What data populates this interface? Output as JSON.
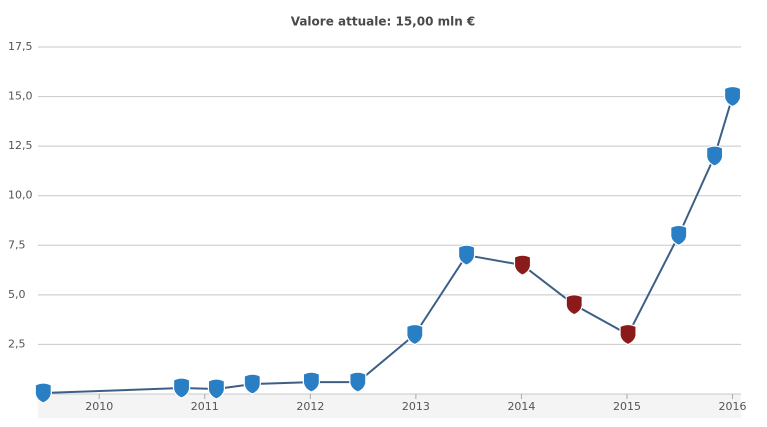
{
  "chart_data": {
    "type": "line",
    "title": "Valore attuale: 15,00 mln €",
    "x": [
      2009.47,
      2010.78,
      2011.11,
      2011.45,
      2012.01,
      2012.45,
      2012.99,
      2013.48,
      2014.01,
      2014.5,
      2015.01,
      2015.49,
      2015.83,
      2016.0
    ],
    "series": [
      {
        "color": "#3d5f86",
        "values": [
          0.05,
          0.3,
          0.25,
          0.5,
          0.6,
          0.6,
          3.0,
          7.0,
          6.5,
          4.5,
          3.0,
          8.0,
          12.0,
          15.0
        ],
        "point_colors": [
          "#2a7fc4",
          "#2a7fc4",
          "#2a7fc4",
          "#2a7fc4",
          "#2a7fc4",
          "#2a7fc4",
          "#2a7fc4",
          "#2a7fc4",
          "#8b1a1a",
          "#8b1a1a",
          "#8b1a1a",
          "#2a7fc4",
          "#2a7fc4",
          "#2a7fc4"
        ]
      }
    ],
    "xlim": [
      2009.42,
      2016.08
    ],
    "xticks": [
      2010,
      2011,
      2012,
      2013,
      2014,
      2015,
      2016
    ],
    "ylim": [
      0,
      17.5
    ],
    "yticks": [
      {
        "value": 2.5,
        "label": "2,5"
      },
      {
        "value": 5,
        "label": "5,0"
      },
      {
        "value": 7.5,
        "label": "7,5"
      },
      {
        "value": 10,
        "label": "10,0"
      },
      {
        "value": 12.5,
        "label": "12,5"
      },
      {
        "value": 15,
        "label": "15,0"
      },
      {
        "value": 17.5,
        "label": "17,5"
      }
    ],
    "grid": true
  }
}
